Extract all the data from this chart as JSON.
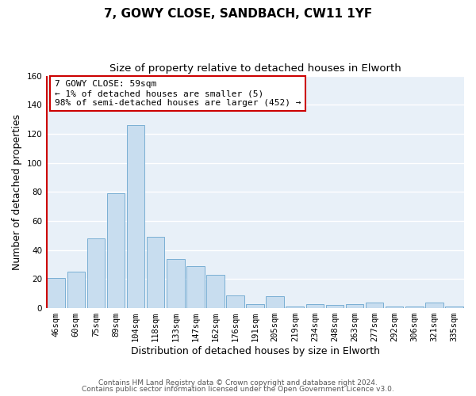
{
  "title": "7, GOWY CLOSE, SANDBACH, CW11 1YF",
  "subtitle": "Size of property relative to detached houses in Elworth",
  "xlabel": "Distribution of detached houses by size in Elworth",
  "ylabel": "Number of detached properties",
  "bar_labels": [
    "46sqm",
    "60sqm",
    "75sqm",
    "89sqm",
    "104sqm",
    "118sqm",
    "133sqm",
    "147sqm",
    "162sqm",
    "176sqm",
    "191sqm",
    "205sqm",
    "219sqm",
    "234sqm",
    "248sqm",
    "263sqm",
    "277sqm",
    "292sqm",
    "306sqm",
    "321sqm",
    "335sqm"
  ],
  "bar_values": [
    21,
    25,
    48,
    79,
    126,
    49,
    34,
    29,
    23,
    9,
    3,
    8,
    1,
    3,
    2,
    3,
    4,
    1,
    1,
    4,
    1
  ],
  "bar_color": "#c8ddef",
  "bar_edge_color": "#7aafd4",
  "ylim": [
    0,
    160
  ],
  "yticks": [
    0,
    20,
    40,
    60,
    80,
    100,
    120,
    140,
    160
  ],
  "annotation_box_text": "7 GOWY CLOSE: 59sqm\n← 1% of detached houses are smaller (5)\n98% of semi-detached houses are larger (452) →",
  "annotation_box_color": "#ffffff",
  "annotation_box_edge_color": "#cc0000",
  "vline_color": "#cc0000",
  "vline_x_index": 0,
  "footer_line1": "Contains HM Land Registry data © Crown copyright and database right 2024.",
  "footer_line2": "Contains public sector information licensed under the Open Government Licence v3.0.",
  "background_color": "#ffffff",
  "plot_bg_color": "#e8f0f8",
  "grid_color": "#ffffff",
  "title_fontsize": 11,
  "subtitle_fontsize": 9.5,
  "axis_label_fontsize": 9,
  "tick_fontsize": 7.5,
  "annotation_fontsize": 8,
  "footer_fontsize": 6.5
}
